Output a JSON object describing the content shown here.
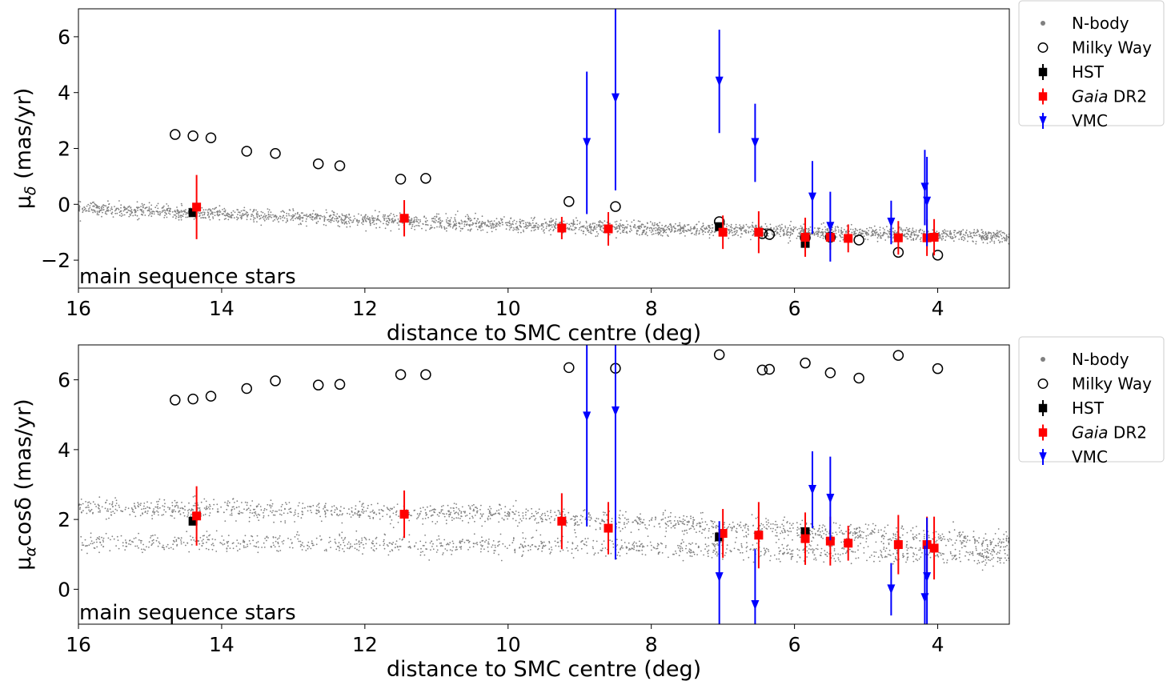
{
  "chart_data": [
    {
      "type": "scatter",
      "panel": "top",
      "xlabel": "distance to SMC centre (deg)",
      "ylabel_main": "μ",
      "ylabel_sub": "δ",
      "ylabel_unit": " (mas/yr)",
      "annotation": "main sequence stars",
      "xlim": [
        16,
        3
      ],
      "ylim": [
        -3,
        7
      ],
      "xticks": [
        16,
        14,
        12,
        10,
        8,
        6,
        4
      ],
      "xtick_labels": [
        "16",
        "14",
        "12",
        "10",
        "8",
        "6",
        "4"
      ],
      "yticks": [
        -2,
        0,
        2,
        4,
        6
      ],
      "ytick_labels": [
        "−2",
        "0",
        "2",
        "4",
        "6"
      ],
      "legend": [
        {
          "label": "N-body",
          "italic": ""
        },
        {
          "label": "Milky Way",
          "italic": ""
        },
        {
          "label": "HST",
          "italic": ""
        },
        {
          "label": " DR2",
          "italic": "Gaia"
        },
        {
          "label": "VMC",
          "italic": ""
        }
      ],
      "nbody_band": {
        "points": [
          [
            16,
            -0.15
          ],
          [
            10,
            -0.75
          ],
          [
            3,
            -1.15
          ]
        ],
        "spread": 0.22,
        "color": "#808080"
      },
      "series": [
        {
          "name": "Milky Way",
          "marker": "open-circle",
          "color": "#000000",
          "x": [
            14.65,
            14.4,
            14.15,
            13.65,
            13.25,
            12.65,
            12.35,
            11.5,
            11.15,
            9.15,
            8.5,
            7.05,
            6.45,
            6.35,
            5.85,
            5.5,
            5.1,
            4.55,
            4.0
          ],
          "y": [
            2.5,
            2.45,
            2.38,
            1.9,
            1.82,
            1.45,
            1.38,
            0.9,
            0.93,
            0.1,
            -0.08,
            -0.62,
            -1.05,
            -1.08,
            -1.2,
            -1.18,
            -1.28,
            -1.72,
            -1.82
          ]
        },
        {
          "name": "HST",
          "marker": "square",
          "color": "#000000",
          "x": [
            14.4,
            7.05,
            5.85
          ],
          "y": [
            -0.3,
            -0.8,
            -1.4
          ],
          "yerr": [
            0.1,
            0.1,
            0.1
          ]
        },
        {
          "name": "Gaia DR2",
          "marker": "square",
          "color": "#ff0000",
          "x": [
            14.35,
            11.45,
            9.25,
            8.6,
            7.0,
            6.5,
            5.85,
            5.5,
            5.25,
            4.55,
            4.15,
            4.05
          ],
          "y": [
            -0.1,
            -0.5,
            -0.85,
            -0.88,
            -1.0,
            -1.0,
            -1.18,
            -1.18,
            -1.22,
            -1.2,
            -1.2,
            -1.18
          ],
          "yerr": [
            1.15,
            0.65,
            0.4,
            0.6,
            0.6,
            0.75,
            0.7,
            0.45,
            0.5,
            0.6,
            0.65,
            0.65
          ]
        },
        {
          "name": "VMC",
          "marker": "triangle-down",
          "color": "#0000ff",
          "x": [
            8.9,
            8.5,
            7.05,
            6.55,
            5.75,
            5.5,
            4.65,
            4.18,
            4.15
          ],
          "y": [
            2.2,
            3.8,
            4.4,
            2.2,
            0.25,
            -0.8,
            -0.65,
            0.6,
            0.1
          ],
          "yerr": [
            2.55,
            3.3,
            1.85,
            1.4,
            1.3,
            1.25,
            0.78,
            1.35,
            1.6
          ]
        }
      ]
    },
    {
      "type": "scatter",
      "panel": "bottom",
      "xlabel": "distance to SMC centre (deg)",
      "ylabel_main": "μ",
      "ylabel_sub": "α",
      "ylabel_unit": "cosδ (mas/yr)",
      "annotation": "main sequence stars",
      "xlim": [
        16,
        3
      ],
      "ylim": [
        -1,
        7
      ],
      "xticks": [
        16,
        14,
        12,
        10,
        8,
        6,
        4
      ],
      "xtick_labels": [
        "16",
        "14",
        "12",
        "10",
        "8",
        "6",
        "4"
      ],
      "yticks": [
        0,
        2,
        4,
        6
      ],
      "ytick_labels": [
        "0",
        "2",
        "4",
        "6"
      ],
      "legend": [
        {
          "label": "N-body",
          "italic": ""
        },
        {
          "label": "Milky Way",
          "italic": ""
        },
        {
          "label": "HST",
          "italic": ""
        },
        {
          "label": " DR2",
          "italic": "Gaia"
        },
        {
          "label": "VMC",
          "italic": ""
        }
      ],
      "nbody_band": {
        "points": [
          [
            16,
            2.35
          ],
          [
            10,
            2.15
          ],
          [
            3,
            1.35
          ]
        ],
        "spread": 0.25,
        "lower_points": [
          [
            16,
            1.35
          ],
          [
            10,
            1.25
          ],
          [
            3,
            0.95
          ]
        ],
        "color": "#808080"
      },
      "series": [
        {
          "name": "Milky Way",
          "marker": "open-circle",
          "color": "#000000",
          "x": [
            14.65,
            14.4,
            14.15,
            13.65,
            13.25,
            12.65,
            12.35,
            11.5,
            11.15,
            9.15,
            8.5,
            7.05,
            6.45,
            6.35,
            5.85,
            5.5,
            5.1,
            4.55,
            4.0
          ],
          "y": [
            5.42,
            5.45,
            5.53,
            5.75,
            5.97,
            5.85,
            5.87,
            6.15,
            6.15,
            6.35,
            6.33,
            6.72,
            6.28,
            6.3,
            6.48,
            6.2,
            6.05,
            6.7,
            6.32
          ]
        },
        {
          "name": "HST",
          "marker": "square",
          "color": "#000000",
          "x": [
            14.4,
            7.05,
            5.85
          ],
          "y": [
            1.95,
            1.5,
            1.65
          ],
          "yerr": [
            0.1,
            0.1,
            0.1
          ]
        },
        {
          "name": "Gaia DR2",
          "marker": "square",
          "color": "#ff0000",
          "x": [
            14.35,
            11.45,
            9.25,
            8.6,
            7.0,
            6.5,
            5.85,
            5.5,
            5.25,
            4.55,
            4.15,
            4.05
          ],
          "y": [
            2.1,
            2.15,
            1.95,
            1.75,
            1.6,
            1.55,
            1.45,
            1.38,
            1.32,
            1.28,
            1.28,
            1.18
          ],
          "yerr": [
            0.85,
            0.68,
            0.8,
            0.75,
            0.7,
            0.95,
            0.75,
            0.7,
            0.5,
            0.85,
            0.8,
            0.9
          ]
        },
        {
          "name": "VMC",
          "marker": "triangle-down",
          "color": "#0000ff",
          "x": [
            8.9,
            8.5,
            7.05,
            6.55,
            5.75,
            5.5,
            4.65,
            4.18,
            4.15
          ],
          "y": [
            4.95,
            5.1,
            0.35,
            -0.45,
            2.85,
            2.6,
            0.0,
            -0.25,
            0.35
          ],
          "yerr": [
            3.15,
            4.25,
            1.6,
            1.6,
            1.1,
            1.2,
            0.75,
            1.5,
            1.7
          ]
        }
      ]
    }
  ]
}
